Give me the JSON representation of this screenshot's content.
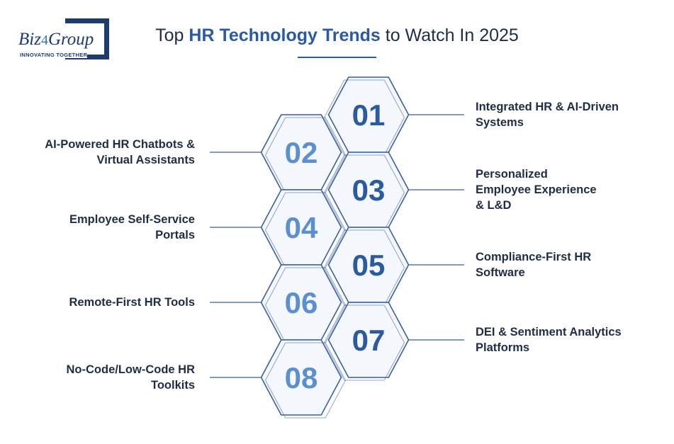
{
  "logo": {
    "brand_a": "Biz",
    "brand_b": "4",
    "brand_c": "Group",
    "tagline": "INNOVATING TOGETHER"
  },
  "title": {
    "prefix": "Top ",
    "highlight": "HR Technology Trends",
    "suffix": " to Watch In 2025"
  },
  "colors": {
    "dark_navy": "#1d3b6e",
    "odd_number": "#2c5aa0",
    "even_number": "#5b8fd0",
    "hex_fill": "#f4f7fb",
    "hex_stroke": "#3a5f9a",
    "title_text": "#1f2d44"
  },
  "trends": [
    {
      "number": "01",
      "label": "Integrated HR & AI-Driven\nSystems",
      "side": "right"
    },
    {
      "number": "02",
      "label": "AI-Powered HR Chatbots &\nVirtual Assistants",
      "side": "left"
    },
    {
      "number": "03",
      "label": "Personalized\nEmployee Experience\n& L&D",
      "side": "right"
    },
    {
      "number": "04",
      "label": "Employee Self-Service\nPortals",
      "side": "left"
    },
    {
      "number": "05",
      "label": "Compliance-First HR\nSoftware",
      "side": "right"
    },
    {
      "number": "06",
      "label": "Remote-First HR Tools",
      "side": "left"
    },
    {
      "number": "07",
      "label": "DEI & Sentiment Analytics\nPlatforms",
      "side": "right"
    },
    {
      "number": "08",
      "label": "No-Code/Low-Code HR\nToolkits",
      "side": "left"
    }
  ]
}
